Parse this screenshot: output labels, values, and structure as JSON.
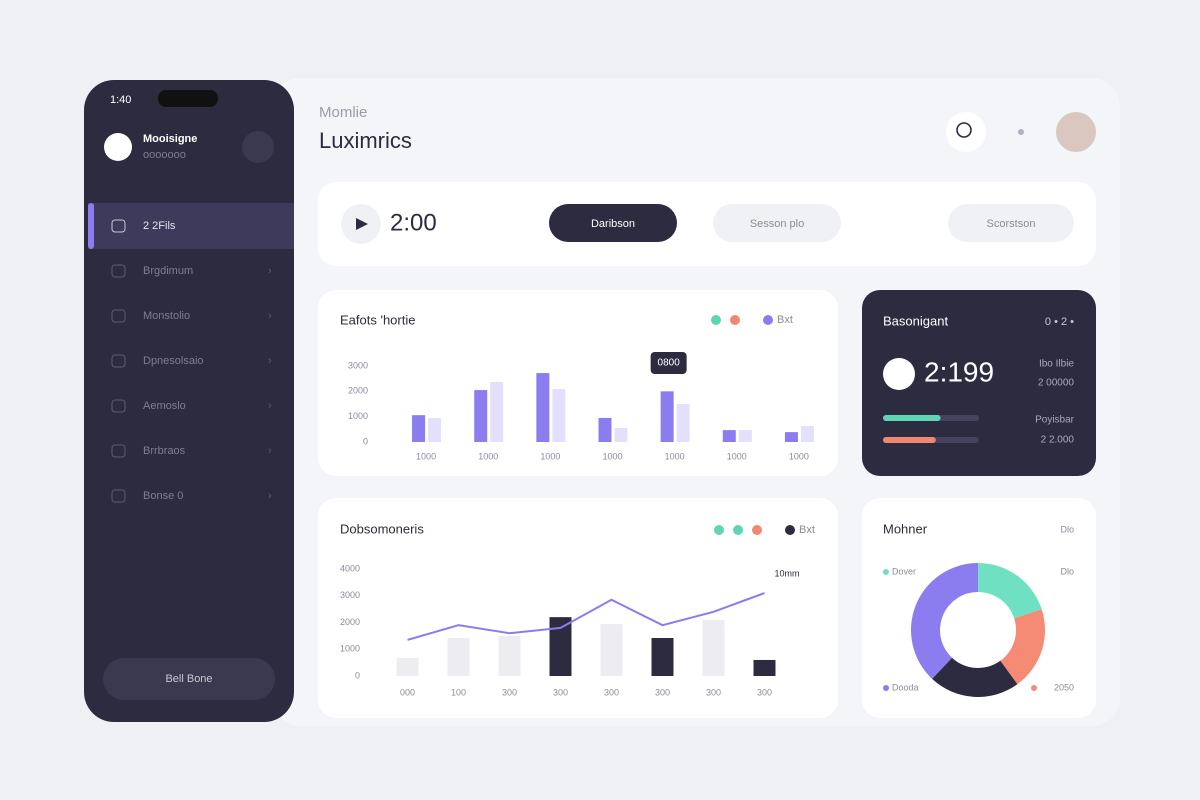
{
  "phone": {
    "time": "1:40",
    "profile": {
      "name": "Mooisigne",
      "subtitle": "ooooooo"
    },
    "nav": [
      "2 2Fils",
      "Brgdimum",
      "Monstolio",
      "Dpnesolsaio",
      "Aemoslo",
      "Brrbraos",
      "Bonse 0"
    ],
    "button": "Bell Bone"
  },
  "header": {
    "subtitle": "Momlie",
    "title": "Luximrics"
  },
  "timer": {
    "time": "2:00",
    "buttons": [
      "Daribson",
      "Sesson plo",
      "Scorstson"
    ]
  },
  "summary": {
    "title": "Basonigant",
    "menu": "0 • 2 •",
    "value": "2:199",
    "side": [
      "Ibo Ilbie",
      "2 00000"
    ],
    "progress": [
      {
        "color": "#5ed6b4",
        "value": 60
      },
      {
        "color": "#f08870",
        "value": 55
      }
    ],
    "progress_lim": [
      0,
      100
    ],
    "labels": [
      "Poyisbar",
      "2 2.000"
    ]
  },
  "chart_data": [
    {
      "type": "bar",
      "title": "Eafots 'hortie",
      "categories": [
        "1000",
        "1000",
        "1000",
        "1000",
        "1000",
        "1000",
        "1000"
      ],
      "series": [
        {
          "name": "Bxt",
          "color": "#8b7cf0",
          "values": [
            1060,
            2050,
            2720,
            950,
            2000,
            470,
            390
          ]
        },
        {
          "color": "#e3e0fb",
          "values": [
            950,
            2370,
            2090,
            550,
            1500,
            470,
            630
          ]
        }
      ],
      "legend_dots": [
        "#5ed6b4",
        "#f08870"
      ],
      "annotation": {
        "text": "0800",
        "category": 4
      },
      "ylim": [
        0,
        3000
      ],
      "yticks": [
        0,
        1000,
        2000,
        3000
      ]
    },
    {
      "type": "combo",
      "title": "Dobsomoneris",
      "categories": [
        "000",
        "100",
        "300",
        "300",
        "300",
        "300",
        "300",
        "300"
      ],
      "series": [
        {
          "name": "Bxt",
          "kind": "bar",
          "color": "#2c2b40",
          "colors": [
            "#ececf1",
            "#ececf1",
            "#ececf1",
            "#2c2b40",
            "#ececf1",
            "#2c2b40",
            "#ececf1",
            "#2c2b40"
          ],
          "values": [
            670,
            1420,
            1500,
            2200,
            1940,
            1420,
            2100,
            600
          ]
        },
        {
          "kind": "line",
          "color": "#8b7cf0",
          "values": [
            1350,
            1900,
            1600,
            1800,
            2850,
            1900,
            2400,
            3100
          ]
        }
      ],
      "legend_dots": [
        "#5ed6b4",
        "#5ed6b4",
        "#f08870"
      ],
      "annotation": "10mm",
      "ylim": [
        0,
        4000
      ],
      "yticks": [
        0,
        1000,
        2000,
        3000,
        4000
      ]
    },
    {
      "type": "pie",
      "title": "Mohner",
      "categories": [
        "Dover",
        "2050",
        null,
        "Dooda"
      ],
      "values": [
        20,
        20,
        22,
        38
      ],
      "colors": [
        "#6fe0c2",
        "#f58b74",
        "#2c2b40",
        "#8b7cf0"
      ],
      "side_labels": [
        "Dlo",
        "Dlo"
      ]
    }
  ]
}
